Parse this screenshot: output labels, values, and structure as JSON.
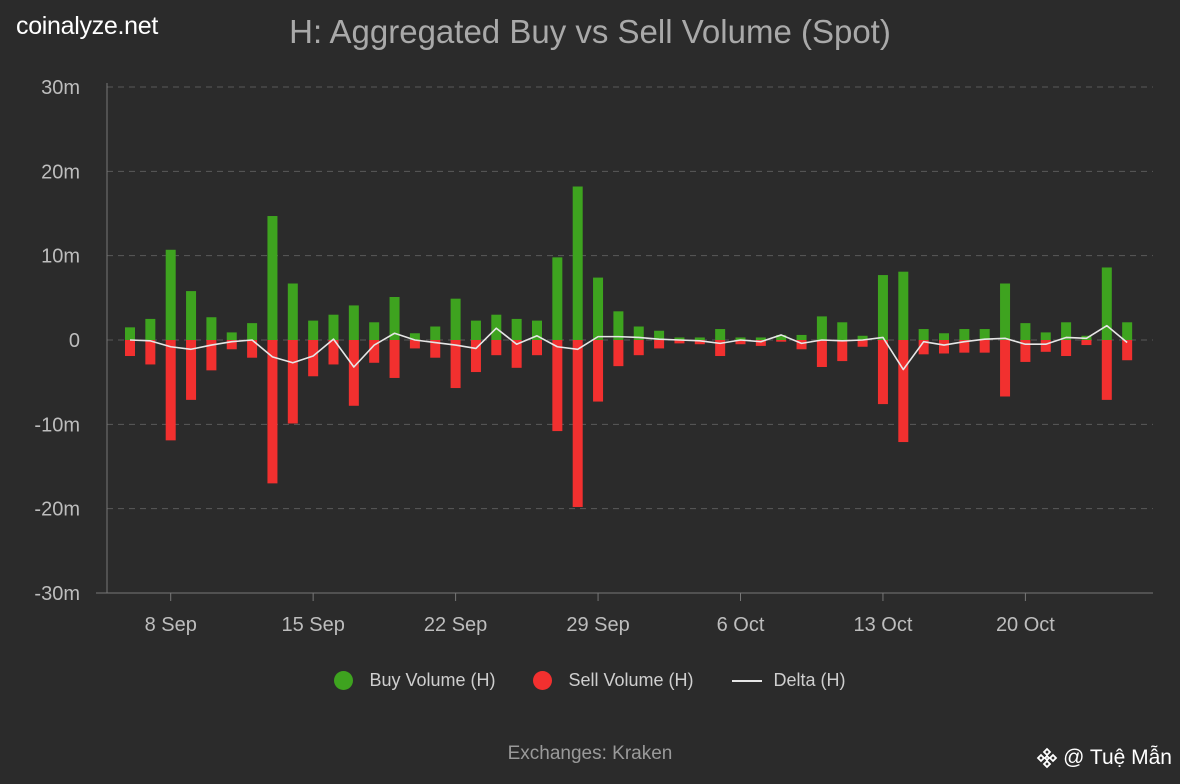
{
  "brand": "coinalyze.net",
  "footer": "Exchanges: Kraken",
  "watermark": {
    "text": "@ Tuệ Mẫn",
    "icon": "binance-logo-icon"
  },
  "colors": {
    "background": "#2b2b2b",
    "buy": "#3ea31f",
    "sell": "#f2302f",
    "delta": "#e6e6e6",
    "grid": "#5a5a5a",
    "axis": "#777777"
  },
  "legend": [
    {
      "label": "Buy Volume (H)",
      "series": "buy"
    },
    {
      "label": "Sell Volume (H)",
      "series": "sell"
    },
    {
      "label": "Delta (H)",
      "series": "delta"
    }
  ],
  "chart_data": {
    "type": "bar",
    "title": "H: Aggregated Buy vs Sell Volume (Spot)",
    "xlabel": "",
    "ylabel": "",
    "ylim": [
      -30,
      30
    ],
    "y_unit": "m",
    "y_ticks": [
      30,
      20,
      10,
      0,
      -10,
      -20,
      -30
    ],
    "y_tick_labels": [
      "30m",
      "20m",
      "10m",
      "0",
      "-10m",
      "-20m",
      "-30m"
    ],
    "x_tick_labels": [
      "8 Sep",
      "15 Sep",
      "22 Sep",
      "29 Sep",
      "6 Oct",
      "13 Oct",
      "20 Oct"
    ],
    "x_tick_index": [
      2,
      9,
      16,
      23,
      30,
      37,
      44
    ],
    "grid": true,
    "legend_position": "bottom",
    "series": [
      {
        "name": "Buy Volume (H)",
        "type": "bar",
        "values": [
          1.5,
          2.5,
          10.7,
          5.8,
          2.7,
          0.9,
          2.0,
          14.7,
          6.7,
          2.3,
          3.0,
          4.1,
          2.1,
          5.1,
          0.8,
          1.6,
          4.9,
          2.3,
          3.0,
          2.5,
          2.3,
          9.8,
          18.2,
          7.4,
          3.4,
          1.6,
          1.1,
          0.3,
          0.3,
          1.3,
          0.3,
          0.3,
          0.6,
          0.6,
          2.8,
          2.1,
          0.5,
          7.7,
          8.1,
          1.3,
          0.8,
          1.3,
          1.3,
          6.7,
          2.0,
          0.9,
          2.1,
          0.5,
          8.6,
          2.1
        ]
      },
      {
        "name": "Sell Volume (H)",
        "type": "bar",
        "values": [
          -1.9,
          -2.9,
          -11.9,
          -7.1,
          -3.6,
          -1.1,
          -2.1,
          -17.0,
          -9.9,
          -4.3,
          -2.9,
          -7.8,
          -2.7,
          -4.5,
          -1.0,
          -2.1,
          -5.7,
          -3.8,
          -1.8,
          -3.3,
          -1.8,
          -10.8,
          -19.8,
          -7.3,
          -3.1,
          -1.8,
          -1.0,
          -0.4,
          -0.5,
          -1.9,
          -0.5,
          -0.7,
          -0.2,
          -1.1,
          -3.2,
          -2.5,
          -0.8,
          -7.6,
          -12.1,
          -1.7,
          -1.6,
          -1.5,
          -1.5,
          -6.7,
          -2.6,
          -1.4,
          -1.9,
          -0.6,
          -7.1,
          -2.4
        ]
      },
      {
        "name": "Delta (H)",
        "type": "line",
        "values": [
          0.0,
          -0.1,
          -0.8,
          -1.1,
          -0.6,
          -0.2,
          0.0,
          -2.0,
          -2.7,
          -1.9,
          0.1,
          -3.2,
          -0.6,
          0.8,
          0.0,
          -0.3,
          -0.6,
          -1.0,
          1.4,
          -0.5,
          0.5,
          -0.8,
          -1.1,
          0.4,
          0.4,
          0.3,
          0.1,
          0.0,
          -0.1,
          -0.4,
          0.0,
          -0.2,
          0.6,
          -0.4,
          0.0,
          -0.1,
          0.0,
          0.3,
          -3.5,
          -0.2,
          -0.6,
          -0.2,
          0.1,
          0.2,
          -0.5,
          -0.5,
          0.3,
          0.2,
          1.7,
          -0.3
        ]
      }
    ]
  }
}
